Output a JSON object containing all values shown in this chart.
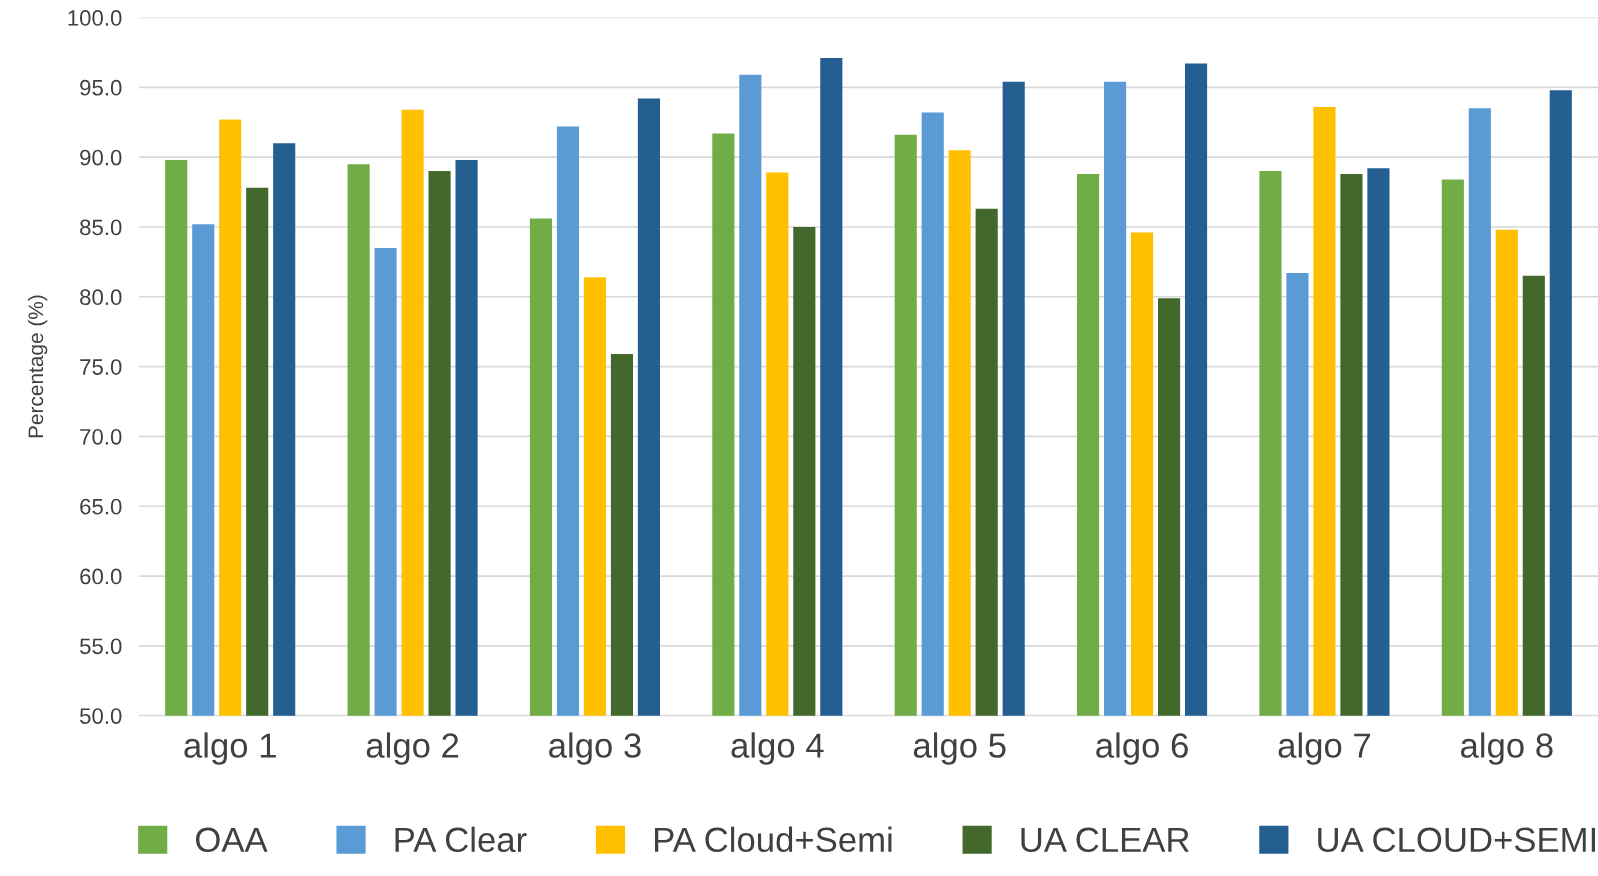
{
  "chart_data": {
    "type": "bar",
    "ylabel": "Percentage (%)",
    "categories": [
      "algo 1",
      "algo 2",
      "algo 3",
      "algo 4",
      "algo 5",
      "algo 6",
      "algo 7",
      "algo 8"
    ],
    "series": [
      {
        "name": "OAA",
        "color": "#70ad47",
        "values": [
          89.8,
          89.5,
          85.6,
          91.7,
          91.6,
          88.8,
          89.0,
          88.4
        ]
      },
      {
        "name": "PA Clear",
        "color": "#5b9bd5",
        "values": [
          85.2,
          83.5,
          92.2,
          95.9,
          93.2,
          95.4,
          81.7,
          93.5
        ]
      },
      {
        "name": "PA Cloud+Semi",
        "color": "#ffc000",
        "values": [
          92.7,
          93.4,
          81.4,
          88.9,
          90.5,
          84.6,
          93.6,
          84.8
        ]
      },
      {
        "name": "UA CLEAR",
        "color": "#43682b",
        "values": [
          87.8,
          89.0,
          75.9,
          85.0,
          86.3,
          79.9,
          88.8,
          81.5
        ]
      },
      {
        "name": "UA CLOUD+SEMI",
        "color": "#255e91",
        "values": [
          91.0,
          89.8,
          94.2,
          97.1,
          95.4,
          96.7,
          89.2,
          94.8
        ]
      }
    ],
    "ylim": [
      50,
      100
    ],
    "yticks": [
      {
        "value": 50,
        "label": "50.0"
      },
      {
        "value": 55,
        "label": "55.0"
      },
      {
        "value": 60,
        "label": "60.0"
      },
      {
        "value": 65,
        "label": "65.0"
      },
      {
        "value": 70,
        "label": "70.0"
      },
      {
        "value": 75,
        "label": "75.0"
      },
      {
        "value": 80,
        "label": "80.0"
      },
      {
        "value": 85,
        "label": "85.0"
      },
      {
        "value": 90,
        "label": "90.0"
      },
      {
        "value": 95,
        "label": "95.0"
      },
      {
        "value": 100,
        "label": "100.0"
      }
    ],
    "grid": "y",
    "legend": "bottom"
  }
}
